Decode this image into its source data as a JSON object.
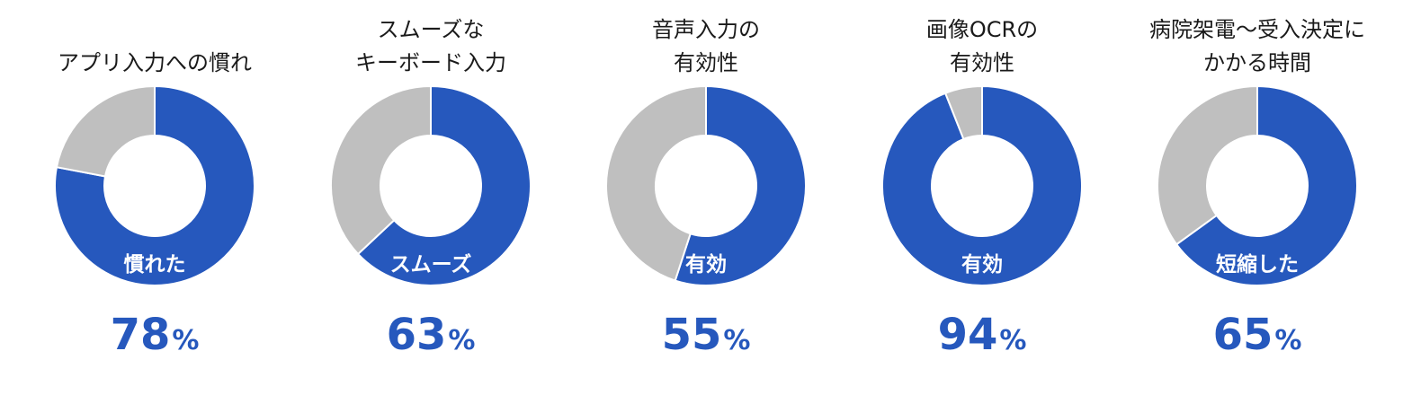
{
  "colors": {
    "primary": "#2658bd",
    "secondary": "#bfbfbf",
    "value_text": "#2658bd",
    "separator": "#ffffff"
  },
  "chart_data": [
    {
      "type": "pie",
      "style": "donut",
      "title_lines": [
        "アプリ入力への慣れ"
      ],
      "slices": [
        {
          "label": "慣れた",
          "value": 78
        },
        {
          "label": "",
          "value": 22
        }
      ],
      "value_label": "78",
      "unit": "%"
    },
    {
      "type": "pie",
      "style": "donut",
      "title_lines": [
        "スムーズな",
        "キーボード入力"
      ],
      "slices": [
        {
          "label": "スムーズ",
          "value": 63
        },
        {
          "label": "",
          "value": 37
        }
      ],
      "value_label": "63",
      "unit": "%"
    },
    {
      "type": "pie",
      "style": "donut",
      "title_lines": [
        "音声入力の",
        "有効性"
      ],
      "slices": [
        {
          "label": "有効",
          "value": 55
        },
        {
          "label": "",
          "value": 45
        }
      ],
      "value_label": "55",
      "unit": "%"
    },
    {
      "type": "pie",
      "style": "donut",
      "title_lines": [
        "画像OCRの",
        "有効性"
      ],
      "slices": [
        {
          "label": "有効",
          "value": 94
        },
        {
          "label": "",
          "value": 6
        }
      ],
      "value_label": "94",
      "unit": "%"
    },
    {
      "type": "pie",
      "style": "donut",
      "title_lines": [
        "病院架電～受入決定に",
        "かかる時間"
      ],
      "slices": [
        {
          "label": "短縮した",
          "value": 65
        },
        {
          "label": "",
          "value": 35
        }
      ],
      "value_label": "65",
      "unit": "%"
    }
  ]
}
